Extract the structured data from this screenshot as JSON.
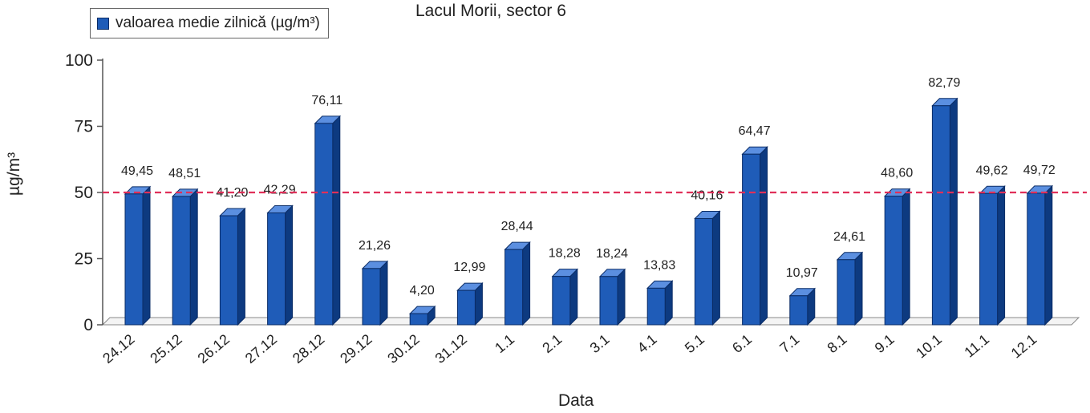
{
  "chart_data": {
    "type": "bar",
    "title": "Lacul Morii, sector 6",
    "ylabel": "µg/m³",
    "xlabel": "Data",
    "ylim": [
      0,
      100
    ],
    "yticks": [
      0,
      25,
      50,
      75,
      100
    ],
    "legend": "top-left",
    "grid": false,
    "categories": [
      "24.12",
      "25.12",
      "26.12",
      "27.12",
      "28.12",
      "29.12",
      "30.12",
      "31.12",
      "1.1",
      "2.1",
      "3.1",
      "4.1",
      "5.1",
      "6.1",
      "7.1",
      "8.1",
      "9.1",
      "10.1",
      "11.1",
      "12.1"
    ],
    "series": [
      {
        "name": "valoarea medie zilnică (µg/m³)",
        "values": [
          49.45,
          48.51,
          41.2,
          42.29,
          76.11,
          21.26,
          4.2,
          12.99,
          28.44,
          18.28,
          18.24,
          13.83,
          40.16,
          64.47,
          10.97,
          24.61,
          48.6,
          82.79,
          49.62,
          49.72
        ],
        "labels": [
          "49,45",
          "48,51",
          "41,20",
          "42,29",
          "76,11",
          "21,26",
          "4,20",
          "12,99",
          "28,44",
          "18,28",
          "18,24",
          "13,83",
          "40,16",
          "64,47",
          "10,97",
          "24,61",
          "48,60",
          "82,79",
          "49,62",
          "49,72"
        ]
      }
    ],
    "reference_line": {
      "value": 50,
      "style": "dashed",
      "color": "#e0305a"
    },
    "colors": {
      "bar_front": "#1f5cb8",
      "bar_side": "#0d3a80",
      "bar_top": "#5b8fe0",
      "bar_outline": "#0a2c66"
    }
  }
}
